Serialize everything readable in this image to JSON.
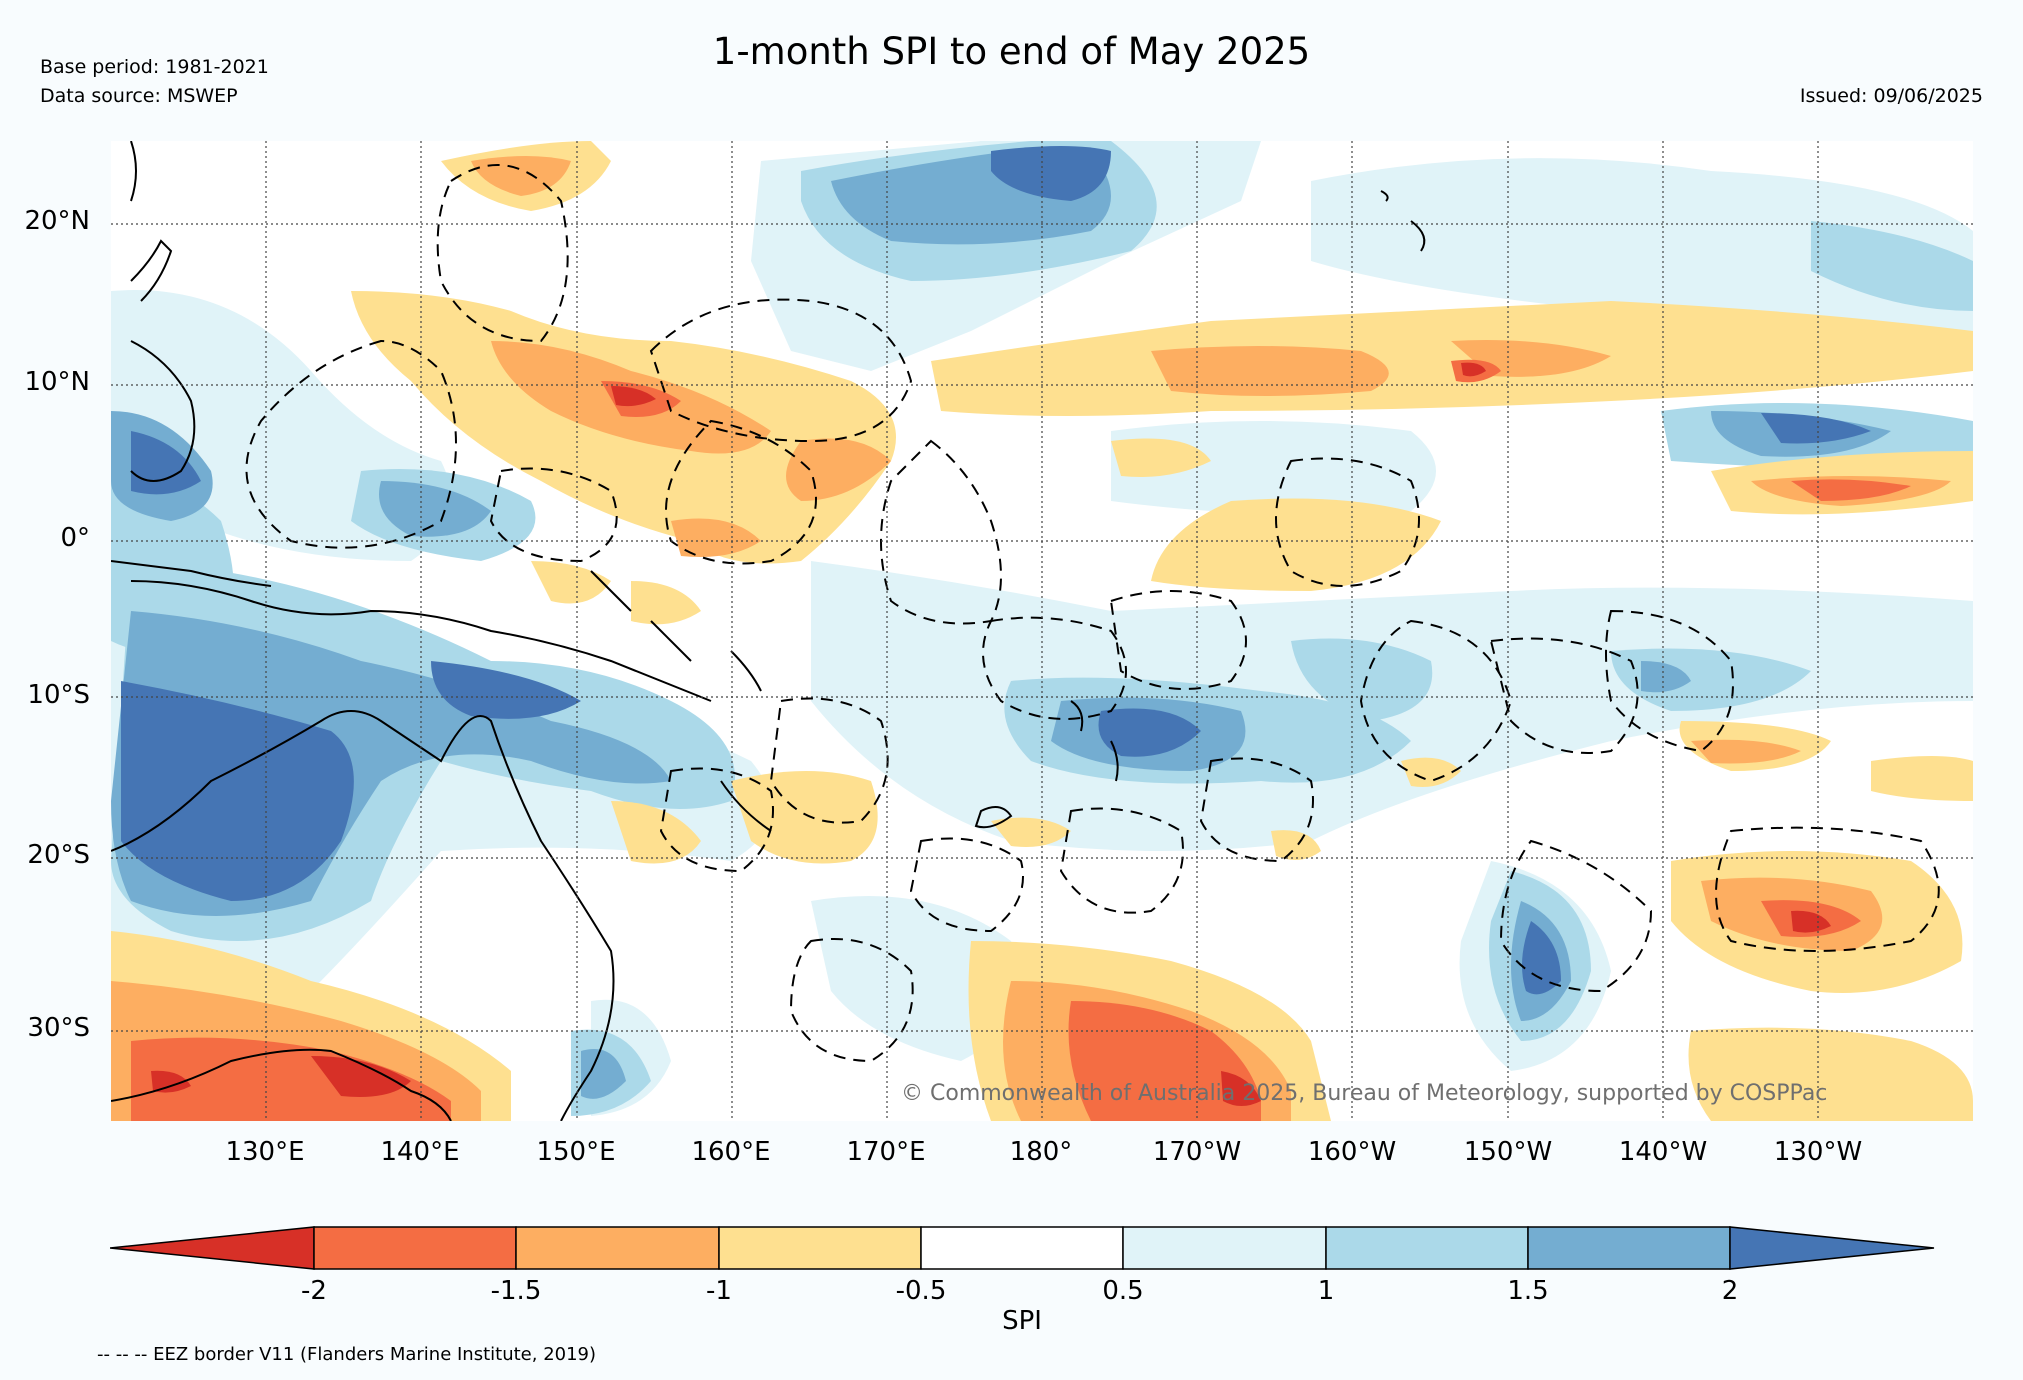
{
  "header": {
    "title": "1-month SPI to end of May 2025",
    "base_period": "Base period: 1981-2021",
    "data_source": "Data source: MSWEP",
    "issued": "Issued: 09/06/2025"
  },
  "map": {
    "lat_labels": [
      "20°N",
      "10°N",
      "0°",
      "10°S",
      "20°S",
      "30°S"
    ],
    "lon_labels": [
      "130°E",
      "140°E",
      "150°E",
      "160°E",
      "170°E",
      "180°",
      "170°W",
      "160°W",
      "150°W",
      "140°W",
      "130°W"
    ],
    "copyright": "© Commonwealth of Australia 2025, Bureau of Meteorology, supported by COSPPac"
  },
  "colorbar": {
    "label": "SPI",
    "ticks": [
      "-2",
      "-1.5",
      "-1",
      "-0.5",
      "0.5",
      "1",
      "1.5",
      "2"
    ],
    "colors": [
      "#d73027",
      "#f46d43",
      "#fdae61",
      "#fee090",
      "#ffffff",
      "#e0f3f8",
      "#abd9e9",
      "#74add1",
      "#4575b4"
    ]
  },
  "footer": {
    "eez_note": "-- -- -- EEZ border V11 (Flanders Marine Institute, 2019)"
  }
}
